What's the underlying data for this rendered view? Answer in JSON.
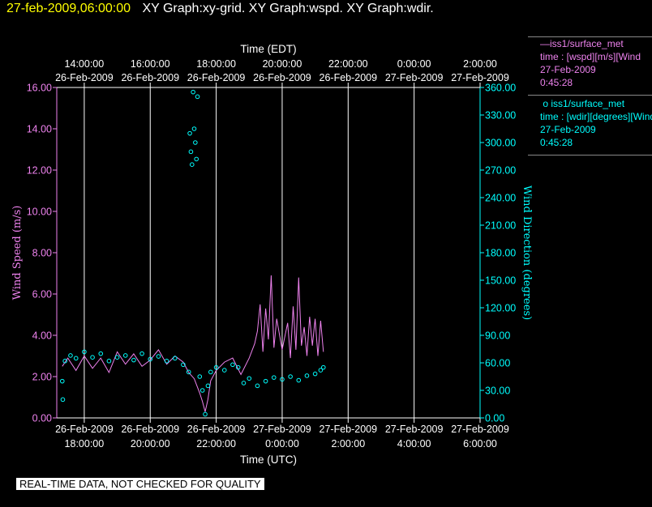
{
  "header": {
    "datetime": "27-feb-2009,06:00:00",
    "graphs": "XY Graph:xy-grid.  XY Graph:wspd.  XY Graph:wdir."
  },
  "colors": {
    "speed": "#ee82ee",
    "direction": "#00ffff",
    "grid": "#ffffff",
    "header_date": "#ffff00"
  },
  "legend": [
    {
      "line1": "iss1/surface_met",
      "line2": "time : [wspd][m/s][Wind",
      "line3": "27-Feb-2009",
      "line4": "0:45:28"
    },
    {
      "line1": "iss1/surface_met",
      "line2": "time : [wdir][degrees][Wind",
      "line3": "27-Feb-2009",
      "line4": "0:45:28"
    }
  ],
  "footer": "REAL-TIME DATA, NOT CHECKED FOR QUALITY",
  "chart_data": {
    "type": "line",
    "top_axis": {
      "label": "Time (EDT)",
      "ticks": [
        {
          "time": "14:00:00",
          "date": "26-Feb-2009"
        },
        {
          "time": "16:00:00",
          "date": "26-Feb-2009"
        },
        {
          "time": "18:00:00",
          "date": "26-Feb-2009"
        },
        {
          "time": "20:00:00",
          "date": "26-Feb-2009"
        },
        {
          "time": "22:00:00",
          "date": "26-Feb-2009"
        },
        {
          "time": "0:00:00",
          "date": "27-Feb-2009"
        },
        {
          "time": "2:00:00",
          "date": "27-Feb-2009"
        }
      ]
    },
    "bottom_axis": {
      "label": "Time (UTC)",
      "range": [
        "26-Feb-2009 17:10",
        "27-Feb-2009 06:00"
      ],
      "ticks": [
        {
          "time": "18:00:00",
          "date": "26-Feb-2009"
        },
        {
          "time": "20:00:00",
          "date": "26-Feb-2009"
        },
        {
          "time": "22:00:00",
          "date": "26-Feb-2009"
        },
        {
          "time": "0:00:00",
          "date": "27-Feb-2009"
        },
        {
          "time": "2:00:00",
          "date": "27-Feb-2009"
        },
        {
          "time": "4:00:00",
          "date": "27-Feb-2009"
        },
        {
          "time": "6:00:00",
          "date": "27-Feb-2009"
        }
      ]
    },
    "left_axis": {
      "label": "Wind Speed (m/s)",
      "ylim": [
        0,
        16
      ],
      "ticks": [
        "0.00",
        "2.00",
        "4.00",
        "6.00",
        "8.00",
        "10.00",
        "12.00",
        "14.00",
        "16.00"
      ]
    },
    "right_axis": {
      "label": "Wind Direction (degrees)",
      "ylim": [
        0,
        360
      ],
      "ticks": [
        "0.00",
        "30.00",
        "60.00",
        "90.00",
        "120.00",
        "150.00",
        "180.00",
        "210.00",
        "240.00",
        "270.00",
        "300.00",
        "330.00",
        "360.00"
      ]
    },
    "series": [
      {
        "name": "iss1/surface_met time : [wspd][m/s]",
        "style": "line",
        "axis": "left",
        "points": [
          [
            "26-Feb-2009 17:20",
            2.5
          ],
          [
            "26-Feb-2009 17:30",
            2.9
          ],
          [
            "26-Feb-2009 17:45",
            2.3
          ],
          [
            "26-Feb-2009 18:00",
            3.0
          ],
          [
            "26-Feb-2009 18:15",
            2.4
          ],
          [
            "26-Feb-2009 18:30",
            2.9
          ],
          [
            "26-Feb-2009 18:45",
            2.2
          ],
          [
            "26-Feb-2009 19:00",
            3.2
          ],
          [
            "26-Feb-2009 19:15",
            2.6
          ],
          [
            "26-Feb-2009 19:30",
            3.1
          ],
          [
            "26-Feb-2009 19:45",
            2.5
          ],
          [
            "26-Feb-2009 20:00",
            2.8
          ],
          [
            "26-Feb-2009 20:15",
            3.3
          ],
          [
            "26-Feb-2009 20:30",
            2.6
          ],
          [
            "26-Feb-2009 20:45",
            3.0
          ],
          [
            "26-Feb-2009 21:00",
            2.7
          ],
          [
            "26-Feb-2009 21:10",
            2.2
          ],
          [
            "26-Feb-2009 21:20",
            1.9
          ],
          [
            "26-Feb-2009 21:30",
            1.2
          ],
          [
            "26-Feb-2009 21:35",
            0.8
          ],
          [
            "26-Feb-2009 21:40",
            0.3
          ],
          [
            "26-Feb-2009 21:45",
            0.9
          ],
          [
            "26-Feb-2009 21:50",
            1.8
          ],
          [
            "26-Feb-2009 22:00",
            2.3
          ],
          [
            "26-Feb-2009 22:15",
            2.7
          ],
          [
            "26-Feb-2009 22:30",
            2.9
          ],
          [
            "26-Feb-2009 22:45",
            2.1
          ],
          [
            "26-Feb-2009 23:00",
            2.9
          ],
          [
            "26-Feb-2009 23:10",
            3.6
          ],
          [
            "26-Feb-2009 23:15",
            4.2
          ],
          [
            "26-Feb-2009 23:20",
            5.5
          ],
          [
            "26-Feb-2009 23:25",
            3.2
          ],
          [
            "26-Feb-2009 23:30",
            5.3
          ],
          [
            "26-Feb-2009 23:35",
            3.8
          ],
          [
            "26-Feb-2009 23:40",
            6.9
          ],
          [
            "26-Feb-2009 23:45",
            3.4
          ],
          [
            "26-Feb-2009 23:50",
            4.8
          ],
          [
            "27-Feb-2009 00:00",
            3.3
          ],
          [
            "27-Feb-2009 00:10",
            4.6
          ],
          [
            "27-Feb-2009 00:15",
            2.9
          ],
          [
            "27-Feb-2009 00:20",
            5.4
          ],
          [
            "27-Feb-2009 00:25",
            3.3
          ],
          [
            "27-Feb-2009 00:30",
            6.8
          ],
          [
            "27-Feb-2009 00:35",
            3.5
          ],
          [
            "27-Feb-2009 00:40",
            4.4
          ],
          [
            "27-Feb-2009 00:45",
            3.0
          ],
          [
            "27-Feb-2009 00:50",
            4.9
          ],
          [
            "27-Feb-2009 00:55",
            3.5
          ],
          [
            "27-Feb-2009 01:00",
            4.8
          ],
          [
            "27-Feb-2009 01:05",
            3.0
          ],
          [
            "27-Feb-2009 01:10",
            4.7
          ],
          [
            "27-Feb-2009 01:15",
            3.2
          ]
        ]
      },
      {
        "name": "iss1/surface_met time : [wdir][degrees]",
        "style": "markers",
        "axis": "right",
        "points": [
          [
            "26-Feb-2009 17:20",
            40
          ],
          [
            "26-Feb-2009 17:21",
            20
          ],
          [
            "26-Feb-2009 17:25",
            62
          ],
          [
            "26-Feb-2009 17:35",
            68
          ],
          [
            "26-Feb-2009 17:45",
            65
          ],
          [
            "26-Feb-2009 18:00",
            72
          ],
          [
            "26-Feb-2009 18:15",
            66
          ],
          [
            "26-Feb-2009 18:30",
            70
          ],
          [
            "26-Feb-2009 18:45",
            62
          ],
          [
            "26-Feb-2009 19:00",
            66
          ],
          [
            "26-Feb-2009 19:15",
            68
          ],
          [
            "26-Feb-2009 19:30",
            63
          ],
          [
            "26-Feb-2009 19:45",
            70
          ],
          [
            "26-Feb-2009 20:00",
            64
          ],
          [
            "26-Feb-2009 20:15",
            67
          ],
          [
            "26-Feb-2009 20:30",
            62
          ],
          [
            "26-Feb-2009 20:45",
            65
          ],
          [
            "26-Feb-2009 21:00",
            58
          ],
          [
            "26-Feb-2009 21:10",
            50
          ],
          [
            "26-Feb-2009 21:12",
            310
          ],
          [
            "26-Feb-2009 21:14",
            290
          ],
          [
            "26-Feb-2009 21:16",
            276
          ],
          [
            "26-Feb-2009 21:18",
            355
          ],
          [
            "26-Feb-2009 21:20",
            315
          ],
          [
            "26-Feb-2009 21:22",
            300
          ],
          [
            "26-Feb-2009 21:24",
            282
          ],
          [
            "26-Feb-2009 21:26",
            350
          ],
          [
            "26-Feb-2009 21:30",
            45
          ],
          [
            "26-Feb-2009 21:35",
            30
          ],
          [
            "26-Feb-2009 21:40",
            4
          ],
          [
            "26-Feb-2009 21:45",
            35
          ],
          [
            "26-Feb-2009 21:50",
            50
          ],
          [
            "26-Feb-2009 22:00",
            55
          ],
          [
            "26-Feb-2009 22:15",
            52
          ],
          [
            "26-Feb-2009 22:30",
            58
          ],
          [
            "26-Feb-2009 22:40",
            55
          ],
          [
            "26-Feb-2009 22:50",
            38
          ],
          [
            "26-Feb-2009 23:00",
            43
          ],
          [
            "26-Feb-2009 23:15",
            35
          ],
          [
            "26-Feb-2009 23:30",
            40
          ],
          [
            "26-Feb-2009 23:45",
            44
          ],
          [
            "27-Feb-2009 00:00",
            42
          ],
          [
            "27-Feb-2009 00:15",
            45
          ],
          [
            "27-Feb-2009 00:30",
            41
          ],
          [
            "27-Feb-2009 00:45",
            46
          ],
          [
            "27-Feb-2009 01:00",
            48
          ],
          [
            "27-Feb-2009 01:10",
            52
          ],
          [
            "27-Feb-2009 01:15",
            55
          ]
        ]
      }
    ],
    "grid": true
  }
}
